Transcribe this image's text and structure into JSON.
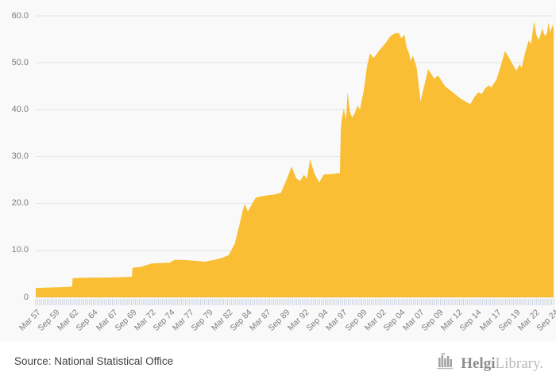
{
  "page": {
    "background": "#f9f9f9"
  },
  "footer": {
    "source_label": "Source: National Statistical Office",
    "logo": {
      "icon": "helgi-building-bars-icon",
      "part1": "Helgi",
      "part2": "Library."
    }
  },
  "chart_data": {
    "type": "area",
    "title": "",
    "xlabel": "",
    "ylabel": "",
    "legend": "none",
    "grid": "horizontal",
    "x_frequency": "quarterly",
    "xlim": [
      1957.25,
      2024.75
    ],
    "ylim": [
      0,
      60
    ],
    "y_ticks": [
      0,
      10,
      20,
      30,
      40,
      50,
      60
    ],
    "y_tick_labels": [
      "0",
      "10.0",
      "20.0",
      "30.0",
      "40.0",
      "50.0",
      "60.0"
    ],
    "x_tick_labels": [
      "Mar 57",
      "Sep 59",
      "Mar 62",
      "Sep 64",
      "Mar 67",
      "Sep 69",
      "Mar 72",
      "Sep 74",
      "Mar 77",
      "Sep 79",
      "Mar 82",
      "Sep 84",
      "Mar 87",
      "Sep 89",
      "Mar 92",
      "Sep 94",
      "Mar 97",
      "Sep 99",
      "Mar 02",
      "Sep 04",
      "Mar 07",
      "Sep 09",
      "Mar 12",
      "Sep 14",
      "Mar 17",
      "Sep 19",
      "Mar 22",
      "Sep 24"
    ],
    "x_tick_step_years": 2.5,
    "x_minor_tick_count": 270,
    "colors": {
      "fill": "#F9BE33",
      "grid": "#e4e4e4",
      "minor_tick": "#c9d2e3",
      "axis_label": "#7c7c7c"
    },
    "points": [
      [
        1957.25,
        2.0
      ],
      [
        1959.0,
        2.1
      ],
      [
        1961.0,
        2.2
      ],
      [
        1962.0,
        2.3
      ],
      [
        1962.05,
        4.1
      ],
      [
        1964.0,
        4.2
      ],
      [
        1966.0,
        4.2
      ],
      [
        1968.0,
        4.3
      ],
      [
        1969.8,
        4.4
      ],
      [
        1969.85,
        6.3
      ],
      [
        1971.0,
        6.5
      ],
      [
        1972.3,
        7.2
      ],
      [
        1973.5,
        7.3
      ],
      [
        1974.7,
        7.4
      ],
      [
        1975.3,
        8.0
      ],
      [
        1976.5,
        8.0
      ],
      [
        1978.0,
        7.8
      ],
      [
        1979.2,
        7.6
      ],
      [
        1980.5,
        8.0
      ],
      [
        1981.5,
        8.4
      ],
      [
        1982.4,
        9.0
      ],
      [
        1983.2,
        11.5
      ],
      [
        1983.8,
        15.5
      ],
      [
        1984.2,
        18.3
      ],
      [
        1984.5,
        19.9
      ],
      [
        1984.9,
        18.3
      ],
      [
        1985.5,
        20.1
      ],
      [
        1985.9,
        21.2
      ],
      [
        1986.5,
        21.5
      ],
      [
        1987.3,
        21.7
      ],
      [
        1988.3,
        21.9
      ],
      [
        1989.2,
        22.3
      ],
      [
        1990.0,
        25.3
      ],
      [
        1990.6,
        27.9
      ],
      [
        1991.2,
        25.4
      ],
      [
        1991.7,
        24.8
      ],
      [
        1992.2,
        26.1
      ],
      [
        1992.6,
        25.3
      ],
      [
        1993.0,
        29.4
      ],
      [
        1993.6,
        26.3
      ],
      [
        1994.2,
        24.5
      ],
      [
        1994.8,
        26.2
      ],
      [
        1995.8,
        26.3
      ],
      [
        1996.9,
        26.5
      ],
      [
        1997.0,
        35.4
      ],
      [
        1997.1,
        37.5
      ],
      [
        1997.4,
        40.3
      ],
      [
        1997.7,
        37.8
      ],
      [
        1997.9,
        43.8
      ],
      [
        1998.2,
        39.5
      ],
      [
        1998.5,
        38.3
      ],
      [
        1998.9,
        39.5
      ],
      [
        1999.2,
        40.9
      ],
      [
        1999.5,
        40.0
      ],
      [
        2000.0,
        44.0
      ],
      [
        2000.4,
        49.0
      ],
      [
        2000.8,
        52.0
      ],
      [
        2001.3,
        51.0
      ],
      [
        2002.0,
        52.6
      ],
      [
        2002.8,
        54.1
      ],
      [
        2003.5,
        55.7
      ],
      [
        2004.1,
        56.3
      ],
      [
        2004.6,
        56.3
      ],
      [
        2004.9,
        55.2
      ],
      [
        2005.3,
        56.0
      ],
      [
        2005.6,
        53.2
      ],
      [
        2005.9,
        52.1
      ],
      [
        2006.1,
        50.4
      ],
      [
        2006.4,
        51.5
      ],
      [
        2006.9,
        49.0
      ],
      [
        2007.4,
        41.7
      ],
      [
        2007.9,
        45.2
      ],
      [
        2008.4,
        48.6
      ],
      [
        2009.2,
        46.6
      ],
      [
        2009.7,
        47.3
      ],
      [
        2010.6,
        45.0
      ],
      [
        2011.3,
        44.1
      ],
      [
        2011.9,
        43.3
      ],
      [
        2012.6,
        42.4
      ],
      [
        2013.4,
        41.6
      ],
      [
        2013.9,
        41.2
      ],
      [
        2014.4,
        42.6
      ],
      [
        2014.9,
        43.7
      ],
      [
        2015.4,
        43.4
      ],
      [
        2015.8,
        44.5
      ],
      [
        2016.3,
        45.2
      ],
      [
        2016.6,
        44.7
      ],
      [
        2017.3,
        46.4
      ],
      [
        2017.8,
        49.0
      ],
      [
        2018.4,
        52.5
      ],
      [
        2018.9,
        51.2
      ],
      [
        2019.5,
        49.4
      ],
      [
        2019.9,
        48.3
      ],
      [
        2020.3,
        49.6
      ],
      [
        2020.6,
        49.0
      ],
      [
        2021.0,
        51.9
      ],
      [
        2021.5,
        54.8
      ],
      [
        2021.8,
        54.0
      ],
      [
        2022.2,
        58.8
      ],
      [
        2022.5,
        55.9
      ],
      [
        2022.8,
        54.9
      ],
      [
        2023.1,
        56.3
      ],
      [
        2023.3,
        57.3
      ],
      [
        2023.6,
        55.7
      ],
      [
        2023.9,
        56.4
      ],
      [
        2024.1,
        58.6
      ],
      [
        2024.3,
        56.4
      ],
      [
        2024.6,
        58.1
      ],
      [
        2024.75,
        57.2
      ]
    ]
  }
}
